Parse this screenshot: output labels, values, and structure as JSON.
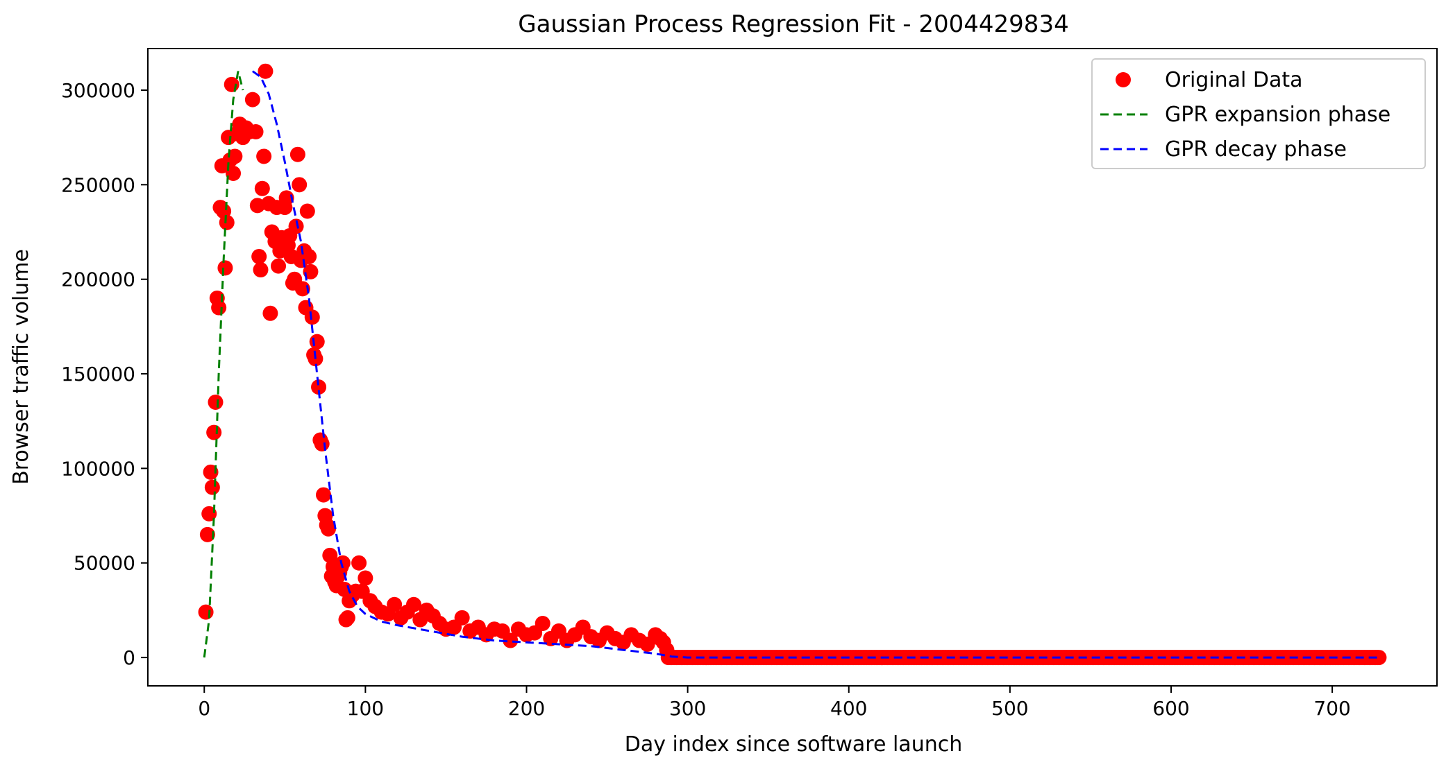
{
  "chart_data": {
    "type": "scatter",
    "title": "Gaussian Process Regression Fit - 2004429834",
    "xlabel": "Day index since software launch",
    "ylabel": "Browser traffic volume",
    "xlim": [
      -35,
      765
    ],
    "ylim": [
      -15000,
      322000
    ],
    "xticks": [
      0,
      100,
      200,
      300,
      400,
      500,
      600,
      700
    ],
    "yticks": [
      0,
      50000,
      100000,
      150000,
      200000,
      250000,
      300000
    ],
    "grid": false,
    "legend_position": "top-right",
    "colors": {
      "data": "#ff0000",
      "expansion": "#008000",
      "decay": "#0000ff"
    },
    "series": [
      {
        "name": "Original Data",
        "kind": "scatter",
        "x": [
          1,
          2,
          3,
          4,
          5,
          6,
          7,
          8,
          9,
          10,
          11,
          12,
          13,
          14,
          15,
          16,
          17,
          18,
          19,
          20,
          22,
          24,
          26,
          28,
          30,
          32,
          33,
          34,
          35,
          36,
          37,
          38,
          40,
          41,
          42,
          44,
          45,
          46,
          47,
          48,
          50,
          51,
          52,
          53,
          54,
          55,
          56,
          57,
          58,
          59,
          60,
          61,
          62,
          63,
          64,
          65,
          66,
          67,
          68,
          69,
          70,
          71,
          72,
          73,
          74,
          75,
          76,
          77,
          78,
          79,
          80,
          81,
          82,
          83,
          84,
          85,
          86,
          87,
          88,
          89,
          90,
          92,
          94,
          96,
          98,
          100,
          103,
          106,
          110,
          114,
          118,
          122,
          126,
          130,
          134,
          138,
          142,
          146,
          150,
          155,
          160,
          165,
          170,
          175,
          180,
          185,
          190,
          195,
          200,
          205,
          210,
          215,
          220,
          225,
          230,
          235,
          240,
          245,
          250,
          255,
          260,
          265,
          270,
          275,
          280,
          283,
          285,
          287
        ],
        "y": [
          24000,
          65000,
          76000,
          98000,
          90000,
          119000,
          135000,
          190000,
          185000,
          238000,
          260000,
          236000,
          206000,
          230000,
          275000,
          263000,
          303000,
          256000,
          265000,
          277000,
          282000,
          275000,
          280000,
          278000,
          295000,
          278000,
          239000,
          212000,
          205000,
          248000,
          265000,
          310000,
          240000,
          182000,
          225000,
          220000,
          238000,
          207000,
          215000,
          222000,
          238000,
          243000,
          218000,
          223000,
          212000,
          198000,
          200000,
          228000,
          266000,
          250000,
          210000,
          195000,
          215000,
          185000,
          236000,
          212000,
          204000,
          180000,
          160000,
          158000,
          167000,
          143000,
          115000,
          113000,
          86000,
          75000,
          70000,
          68000,
          54000,
          43000,
          48000,
          40000,
          38000,
          43000,
          45000,
          48000,
          50000,
          36000,
          20000,
          21000,
          30000,
          33000,
          35000,
          50000,
          35000,
          42000,
          30000,
          27000,
          24000,
          23000,
          28000,
          21000,
          24000,
          28000,
          20000,
          25000,
          22000,
          18000,
          15000,
          16000,
          21000,
          14000,
          16000,
          12000,
          15000,
          14000,
          9000,
          15000,
          12000,
          13000,
          18000,
          10000,
          14000,
          9000,
          12000,
          16000,
          11000,
          9000,
          13000,
          10000,
          8000,
          12000,
          9000,
          7000,
          12000,
          10000,
          8000,
          4000
        ]
      },
      {
        "name": "GPR expansion phase",
        "kind": "line",
        "x": [
          0,
          3,
          6,
          9,
          12,
          15,
          18,
          21,
          24
        ],
        "y": [
          0,
          20000,
          75000,
          150000,
          210000,
          262000,
          295000,
          310000,
          300000
        ]
      },
      {
        "name": "GPR decay phase",
        "kind": "line",
        "x": [
          30,
          35,
          40,
          45,
          50,
          55,
          60,
          65,
          70,
          75,
          80,
          85,
          90,
          95,
          100,
          110,
          120,
          140,
          160,
          180,
          200,
          220,
          240,
          260,
          280,
          290,
          300,
          400,
          500,
          600,
          700,
          730
        ],
        "y": [
          310000,
          307000,
          298000,
          282000,
          262000,
          240000,
          220000,
          190000,
          150000,
          110000,
          75000,
          50000,
          35000,
          27000,
          23000,
          19000,
          17000,
          14000,
          11000,
          9000,
          8000,
          7000,
          6000,
          4000,
          2000,
          500,
          0,
          0,
          0,
          0,
          0,
          0
        ]
      }
    ],
    "flat_tail": {
      "x_start": 288,
      "x_end": 729,
      "y": 0
    }
  }
}
